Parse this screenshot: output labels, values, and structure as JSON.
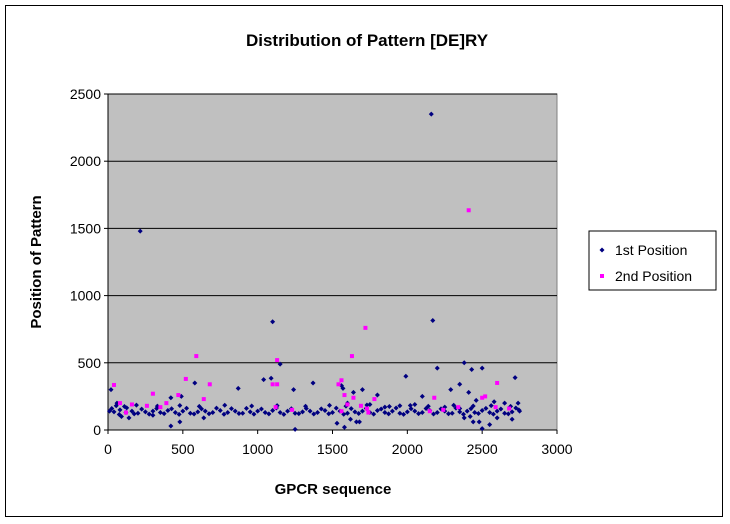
{
  "chart_data": {
    "type": "scatter",
    "title": "Distribution of Pattern [DE]RY",
    "xlabel": "GPCR sequence",
    "ylabel": "Position of Pattern",
    "xlim": [
      0,
      3000
    ],
    "ylim": [
      0,
      2500
    ],
    "xticks": [
      "0",
      "500",
      "1000",
      "1500",
      "2000",
      "2500",
      "3000"
    ],
    "yticks": [
      "0",
      "500",
      "1000",
      "1500",
      "2000",
      "2500"
    ],
    "grid": "horizontal",
    "plot_background": "#c0c0c0",
    "legend_position": "right",
    "series": [
      {
        "name": "1st Position",
        "color": "#000080",
        "marker": "diamond",
        "points": [
          [
            2160,
            2350
          ],
          [
            215,
            1480
          ],
          [
            1100,
            805
          ],
          [
            2170,
            815
          ],
          [
            1150,
            490
          ],
          [
            2380,
            500
          ],
          [
            2200,
            460
          ],
          [
            2500,
            460
          ],
          [
            2430,
            450
          ],
          [
            1990,
            400
          ],
          [
            2720,
            390
          ],
          [
            1090,
            385
          ],
          [
            1040,
            375
          ],
          [
            2350,
            340
          ],
          [
            580,
            350
          ],
          [
            870,
            310
          ],
          [
            1560,
            330
          ],
          [
            1240,
            300
          ],
          [
            420,
            240
          ],
          [
            490,
            250
          ],
          [
            20,
            300
          ],
          [
            60,
            200
          ],
          [
            1370,
            350
          ],
          [
            1570,
            310
          ],
          [
            1640,
            280
          ],
          [
            1700,
            300
          ],
          [
            1800,
            260
          ],
          [
            2100,
            250
          ],
          [
            2290,
            300
          ],
          [
            2410,
            280
          ],
          [
            2460,
            220
          ],
          [
            2580,
            210
          ],
          [
            2650,
            200
          ],
          [
            1600,
            200
          ],
          [
            1750,
            190
          ],
          [
            1850,
            170
          ],
          [
            1950,
            180
          ],
          [
            2050,
            190
          ],
          [
            2250,
            170
          ],
          [
            2350,
            160
          ],
          [
            2480,
            60
          ],
          [
            2500,
            10
          ],
          [
            2550,
            40
          ],
          [
            1250,
            5
          ],
          [
            1530,
            50
          ],
          [
            1580,
            20
          ],
          [
            1620,
            80
          ],
          [
            1680,
            60
          ],
          [
            420,
            30
          ],
          [
            480,
            60
          ],
          [
            640,
            90
          ],
          [
            2420,
            100
          ],
          [
            2440,
            60
          ],
          [
            2380,
            90
          ],
          [
            1660,
            60
          ],
          [
            2600,
            90
          ],
          [
            2700,
            80
          ],
          [
            90,
            100
          ],
          [
            140,
            90
          ],
          [
            300,
            110
          ],
          [
            10,
            140
          ],
          [
            40,
            135
          ],
          [
            80,
            150
          ],
          [
            120,
            130
          ],
          [
            160,
            140
          ],
          [
            200,
            125
          ],
          [
            250,
            135
          ],
          [
            300,
            140
          ],
          [
            350,
            130
          ],
          [
            400,
            145
          ],
          [
            450,
            130
          ],
          [
            500,
            140
          ],
          [
            550,
            125
          ],
          [
            600,
            135
          ],
          [
            650,
            140
          ],
          [
            700,
            130
          ],
          [
            750,
            145
          ],
          [
            800,
            130
          ],
          [
            850,
            140
          ],
          [
            900,
            125
          ],
          [
            950,
            135
          ],
          [
            1000,
            140
          ],
          [
            1050,
            130
          ],
          [
            1100,
            145
          ],
          [
            1150,
            130
          ],
          [
            1200,
            140
          ],
          [
            1250,
            125
          ],
          [
            1300,
            135
          ],
          [
            1350,
            140
          ],
          [
            1400,
            130
          ],
          [
            1450,
            145
          ],
          [
            1500,
            130
          ],
          [
            1550,
            140
          ],
          [
            1600,
            125
          ],
          [
            1650,
            135
          ],
          [
            1700,
            140
          ],
          [
            1750,
            130
          ],
          [
            1800,
            145
          ],
          [
            1850,
            130
          ],
          [
            1900,
            140
          ],
          [
            1950,
            125
          ],
          [
            2000,
            135
          ],
          [
            2050,
            140
          ],
          [
            2100,
            130
          ],
          [
            2150,
            145
          ],
          [
            2200,
            130
          ],
          [
            2250,
            140
          ],
          [
            2300,
            125
          ],
          [
            2350,
            135
          ],
          [
            2400,
            140
          ],
          [
            2450,
            130
          ],
          [
            2500,
            145
          ],
          [
            2550,
            130
          ],
          [
            2600,
            140
          ],
          [
            2650,
            125
          ],
          [
            2700,
            135
          ],
          [
            2750,
            140
          ],
          [
            25,
            160
          ],
          [
            75,
            115
          ],
          [
            125,
            165
          ],
          [
            175,
            120
          ],
          [
            225,
            155
          ],
          [
            275,
            118
          ],
          [
            325,
            160
          ],
          [
            375,
            122
          ],
          [
            425,
            158
          ],
          [
            475,
            116
          ],
          [
            525,
            162
          ],
          [
            575,
            119
          ],
          [
            625,
            157
          ],
          [
            675,
            121
          ],
          [
            725,
            163
          ],
          [
            775,
            117
          ],
          [
            825,
            159
          ],
          [
            875,
            123
          ],
          [
            925,
            161
          ],
          [
            975,
            118
          ],
          [
            1025,
            156
          ],
          [
            1075,
            120
          ],
          [
            1125,
            164
          ],
          [
            1175,
            116
          ],
          [
            1225,
            158
          ],
          [
            1275,
            122
          ],
          [
            1325,
            160
          ],
          [
            1375,
            119
          ],
          [
            1425,
            157
          ],
          [
            1475,
            121
          ],
          [
            1525,
            163
          ],
          [
            1575,
            117
          ],
          [
            1625,
            159
          ],
          [
            1675,
            123
          ],
          [
            1725,
            161
          ],
          [
            1775,
            118
          ],
          [
            1825,
            156
          ],
          [
            1875,
            120
          ],
          [
            1925,
            164
          ],
          [
            1975,
            116
          ],
          [
            2025,
            158
          ],
          [
            2075,
            122
          ],
          [
            2125,
            160
          ],
          [
            2175,
            119
          ],
          [
            2225,
            157
          ],
          [
            2275,
            121
          ],
          [
            2325,
            163
          ],
          [
            2375,
            117
          ],
          [
            2425,
            159
          ],
          [
            2475,
            123
          ],
          [
            2525,
            161
          ],
          [
            2575,
            118
          ],
          [
            2625,
            156
          ],
          [
            2675,
            120
          ],
          [
            2725,
            164
          ],
          [
            2745,
            150
          ],
          [
            55,
            180
          ],
          [
            110,
            175
          ],
          [
            190,
            185
          ],
          [
            330,
            178
          ],
          [
            480,
            182
          ],
          [
            610,
            176
          ],
          [
            780,
            184
          ],
          [
            960,
            179
          ],
          [
            1130,
            181
          ],
          [
            1320,
            177
          ],
          [
            1480,
            183
          ],
          [
            1590,
            178
          ],
          [
            1730,
            186
          ],
          [
            1880,
            175
          ],
          [
            2020,
            182
          ],
          [
            2140,
            177
          ],
          [
            2310,
            184
          ],
          [
            2440,
            179
          ],
          [
            2560,
            181
          ],
          [
            2690,
            176
          ],
          [
            2740,
            200
          ]
        ]
      },
      {
        "name": "2nd Position",
        "color": "#ff00ff",
        "marker": "square",
        "points": [
          [
            2410,
            1635
          ],
          [
            1720,
            760
          ],
          [
            590,
            550
          ],
          [
            1630,
            550
          ],
          [
            1130,
            520
          ],
          [
            520,
            380
          ],
          [
            1560,
            370
          ],
          [
            1100,
            340
          ],
          [
            1130,
            340
          ],
          [
            1540,
            340
          ],
          [
            2600,
            350
          ],
          [
            680,
            340
          ],
          [
            40,
            335
          ],
          [
            300,
            270
          ],
          [
            470,
            260
          ],
          [
            640,
            230
          ],
          [
            1580,
            260
          ],
          [
            1640,
            240
          ],
          [
            1780,
            230
          ],
          [
            2180,
            240
          ],
          [
            2500,
            240
          ],
          [
            2520,
            250
          ],
          [
            80,
            200
          ],
          [
            160,
            190
          ],
          [
            260,
            180
          ],
          [
            350,
            170
          ],
          [
            390,
            200
          ],
          [
            1120,
            170
          ],
          [
            1600,
            190
          ],
          [
            1690,
            180
          ],
          [
            1730,
            160
          ],
          [
            2340,
            170
          ],
          [
            2590,
            170
          ],
          [
            2680,
            160
          ],
          [
            1560,
            140
          ],
          [
            2150,
            140
          ],
          [
            2240,
            150
          ],
          [
            1740,
            130
          ],
          [
            120,
            130
          ],
          [
            1230,
            150
          ]
        ]
      }
    ]
  }
}
